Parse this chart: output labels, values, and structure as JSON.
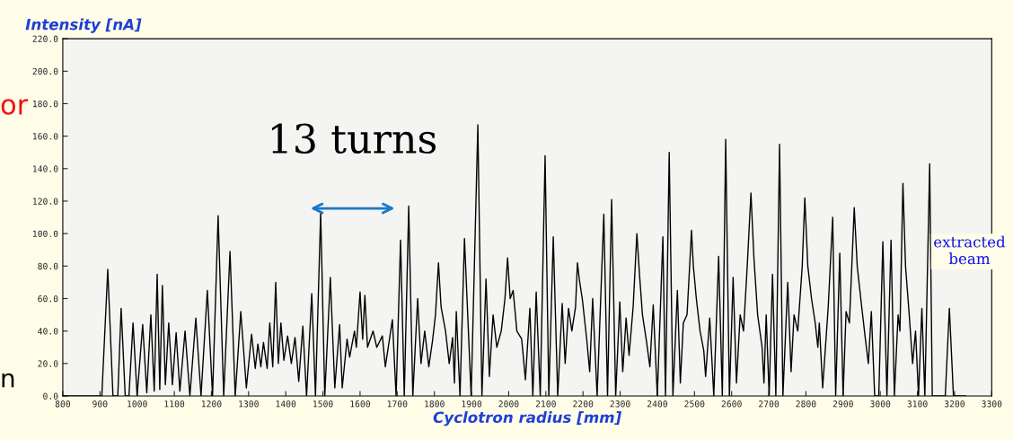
{
  "chart_data": {
    "type": "line",
    "xlabel": "Cyclotron radius [mm]",
    "ylabel": "Intensity [nA]",
    "annotations": [
      "13 turns",
      "extracted beam",
      "or",
      "n"
    ],
    "series": [
      {
        "color": "#000000",
        "x": [
          800,
          905,
          921,
          935,
          948,
          957,
          968,
          978,
          989,
          1000,
          1015,
          1026,
          1037,
          1046,
          1054,
          1061,
          1068,
          1076,
          1085,
          1095,
          1105,
          1115,
          1129,
          1142,
          1158,
          1172,
          1189,
          1203,
          1218,
          1233,
          1250,
          1264,
          1279,
          1294,
          1308,
          1318,
          1325,
          1333,
          1340,
          1350,
          1357,
          1365,
          1373,
          1380,
          1387,
          1395,
          1405,
          1415,
          1425,
          1435,
          1446,
          1456,
          1470,
          1480,
          1494,
          1505,
          1520,
          1532,
          1545,
          1552,
          1565,
          1572,
          1585,
          1590,
          1600,
          1607,
          1613,
          1620,
          1635,
          1645,
          1660,
          1668,
          1687,
          1697,
          1709,
          1719,
          1731,
          1742,
          1755,
          1764,
          1774,
          1785,
          1795,
          1803,
          1811,
          1818,
          1830,
          1840,
          1849,
          1854,
          1859,
          1869,
          1881,
          1899,
          1917,
          1928,
          1939,
          1948,
          1958,
          1968,
          1980,
          1990,
          1997,
          2004,
          2012,
          2022,
          2035,
          2045,
          2057,
          2065,
          2074,
          2085,
          2098,
          2108,
          2120,
          2132,
          2144,
          2152,
          2161,
          2170,
          2180,
          2185,
          2190,
          2198,
          2210,
          2218,
          2226,
          2238,
          2256,
          2266,
          2277,
          2288,
          2299,
          2307,
          2316,
          2324,
          2335,
          2345,
          2352,
          2360,
          2370,
          2380,
          2389,
          2400,
          2415,
          2422,
          2432,
          2442,
          2454,
          2462,
          2470,
          2480,
          2487,
          2492,
          2497,
          2505,
          2515,
          2525,
          2530,
          2541,
          2552,
          2565,
          2575,
          2584,
          2594,
          2604,
          2613,
          2623,
          2632,
          2642,
          2652,
          2660,
          2670,
          2682,
          2687,
          2693,
          2701,
          2710,
          2719,
          2729,
          2738,
          2751,
          2760,
          2768,
          2778,
          2790,
          2797,
          2805,
          2815,
          2825,
          2832,
          2836,
          2845,
          2860,
          2872,
          2880,
          2891,
          2900,
          2908,
          2917,
          2930,
          2938,
          2950,
          2960,
          2968,
          2976,
          2985,
          2996,
          3007,
          3018,
          3029,
          3038,
          3048,
          3053,
          3061,
          3068,
          3078,
          3087,
          3095,
          3103,
          3112,
          3120,
          3133,
          3140,
          3175,
          3186,
          3197,
          3230
        ],
        "values": [
          0,
          0,
          78,
          0,
          0,
          54,
          0,
          0,
          45,
          0,
          44,
          2,
          50,
          3,
          75,
          4,
          68,
          7,
          45,
          7,
          39,
          3,
          40,
          0,
          48,
          0,
          65,
          0,
          111,
          0,
          89,
          0,
          52,
          5,
          38,
          17,
          32,
          18,
          33,
          17,
          45,
          18,
          70,
          20,
          45,
          22,
          37,
          20,
          36,
          9,
          43,
          0,
          63,
          0,
          113,
          0,
          73,
          5,
          44,
          5,
          35,
          24,
          40,
          30,
          64,
          35,
          62,
          30,
          40,
          30,
          37,
          18,
          47,
          0,
          96,
          0,
          117,
          0,
          60,
          20,
          40,
          18,
          34,
          50,
          82,
          55,
          40,
          20,
          36,
          8,
          52,
          0,
          97,
          0,
          167,
          0,
          72,
          12,
          50,
          30,
          40,
          60,
          85,
          60,
          65,
          40,
          35,
          10,
          54,
          0,
          64,
          0,
          148,
          0,
          98,
          0,
          57,
          20,
          54,
          40,
          55,
          82,
          72,
          60,
          35,
          15,
          60,
          0,
          112,
          0,
          121,
          0,
          58,
          15,
          48,
          25,
          55,
          100,
          75,
          50,
          35,
          18,
          56,
          0,
          98,
          0,
          150,
          0,
          65,
          8,
          45,
          50,
          80,
          102,
          80,
          60,
          40,
          28,
          12,
          48,
          0,
          86,
          0,
          158,
          0,
          73,
          8,
          50,
          40,
          80,
          125,
          85,
          50,
          30,
          8,
          50,
          0,
          75,
          0,
          155,
          0,
          70,
          15,
          50,
          40,
          80,
          122,
          80,
          60,
          45,
          30,
          45,
          5,
          55,
          110,
          0,
          88,
          0,
          52,
          45,
          116,
          80,
          55,
          35,
          20,
          52,
          0,
          0,
          95,
          0,
          96,
          0,
          50,
          40,
          131,
          80,
          50,
          20,
          40,
          0,
          54,
          0,
          143,
          0,
          0,
          54,
          0,
          0
        ]
      }
    ],
    "xlim": [
      800,
      3300
    ],
    "xticks": [
      800,
      900,
      1000,
      1100,
      1200,
      1300,
      1400,
      1500,
      1600,
      1700,
      1800,
      1900,
      2000,
      2100,
      2200,
      2300,
      2400,
      2500,
      2600,
      2700,
      2800,
      2900,
      3000,
      3100,
      3200,
      3300
    ],
    "ylim": [
      0,
      220
    ],
    "yticks": [
      {
        "value": 0,
        "label": "0.0"
      },
      {
        "value": 20,
        "label": "20.0"
      },
      {
        "value": 40,
        "label": "40.0"
      },
      {
        "value": 60,
        "label": "60.0"
      },
      {
        "value": 80,
        "label": "80.0"
      },
      {
        "value": 100,
        "label": "100.0"
      },
      {
        "value": 120,
        "label": "120.0"
      },
      {
        "value": 140,
        "label": "140.0"
      },
      {
        "value": 160,
        "label": "160.0"
      },
      {
        "value": 180,
        "label": "180.0"
      },
      {
        "value": 200,
        "label": "200.0"
      },
      {
        "value": 220,
        "label": "220.0"
      }
    ],
    "grid": false,
    "legend": false,
    "marker": "none",
    "line_style": "solid"
  }
}
